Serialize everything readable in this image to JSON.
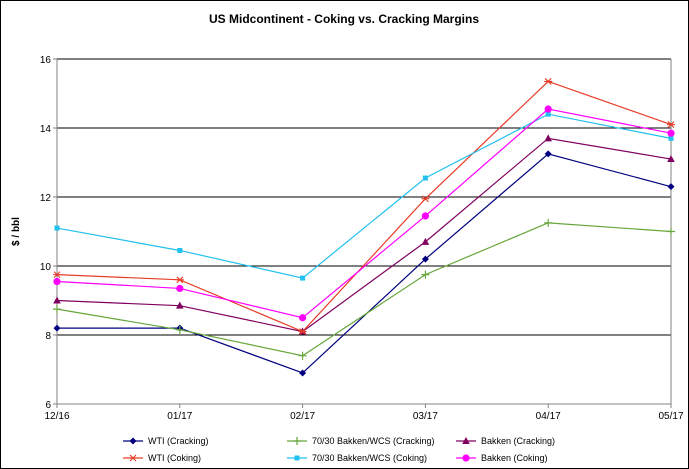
{
  "chart_data": {
    "type": "line",
    "title": "US Midcontinent - Coking vs. Cracking Margins",
    "xlabel": "",
    "ylabel": "$ / bbl",
    "categories": [
      "12/16",
      "01/17",
      "02/17",
      "03/17",
      "04/17",
      "05/17"
    ],
    "ylim": [
      6,
      16
    ],
    "yticks": [
      6,
      8,
      10,
      12,
      14,
      16
    ],
    "grid": "horizontal",
    "legend_position": "bottom",
    "series": [
      {
        "name": "WTI (Cracking)",
        "color": "#000080",
        "marker": "diamond",
        "values": [
          8.2,
          8.2,
          6.9,
          10.2,
          13.25,
          12.3
        ]
      },
      {
        "name": "70/30 Bakken/WCS (Cracking)",
        "color": "#66a63a",
        "marker": "plus",
        "values": [
          8.75,
          8.15,
          7.4,
          9.75,
          11.25,
          11.0
        ]
      },
      {
        "name": "Bakken (Cracking)",
        "color": "#800060",
        "marker": "triangle",
        "values": [
          9.0,
          8.85,
          8.1,
          10.7,
          13.7,
          13.1
        ]
      },
      {
        "name": "WTI (Coking)",
        "color": "#e83c28",
        "marker": "star",
        "values": [
          9.75,
          9.6,
          8.1,
          11.95,
          15.35,
          14.1
        ]
      },
      {
        "name": "70/30 Bakken/WCS (Coking)",
        "color": "#22c0ee",
        "marker": "square",
        "values": [
          11.1,
          10.45,
          9.65,
          12.55,
          14.4,
          13.7
        ]
      },
      {
        "name": "Bakken (Coking)",
        "color": "#ff00ff",
        "marker": "circle",
        "values": [
          9.55,
          9.35,
          8.5,
          11.45,
          14.55,
          13.85
        ]
      }
    ]
  }
}
